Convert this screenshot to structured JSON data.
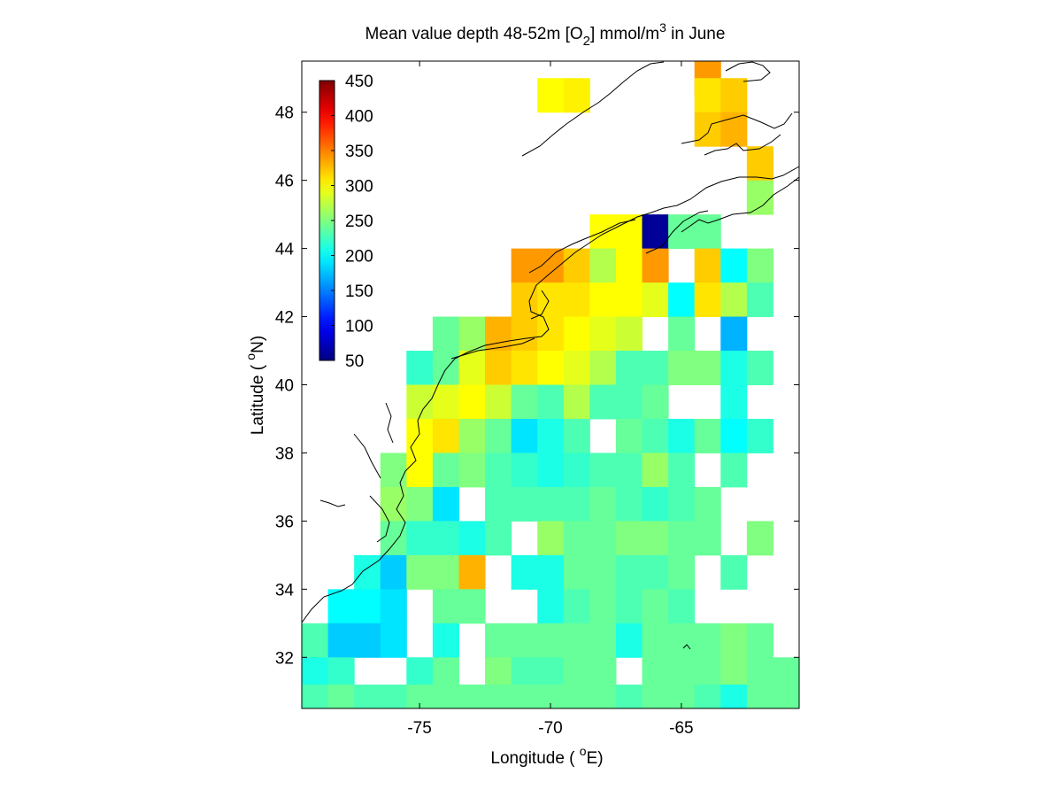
{
  "chart_data": {
    "type": "heatmap",
    "title": {
      "prefix": "Mean value depth 48-52m [O",
      "sub": "2",
      "mid": "] mmol/m",
      "sup": "3",
      "suffix": " in June"
    },
    "xlabel": {
      "text": "Longitude ( ",
      "sup": "o",
      "unit": "E)"
    },
    "ylabel": {
      "text": "Latitude ( ",
      "sup": "o",
      "unit": "N)"
    },
    "xlim": [
      -79.5,
      -60.5
    ],
    "ylim": [
      30.5,
      49.5
    ],
    "xticks": [
      -75,
      -70,
      -65
    ],
    "yticks": [
      32,
      34,
      36,
      38,
      40,
      42,
      44,
      46,
      48
    ],
    "colorbar": {
      "range": [
        50,
        450
      ],
      "ticks": [
        50,
        100,
        150,
        200,
        250,
        300,
        350,
        400,
        450
      ],
      "colormap": "jet",
      "position": "top-left"
    },
    "cell_size_deg": 1,
    "cells_note": "each row: [latitude_center, first_longitude_center, values...]; null = no data",
    "rows": [
      [
        49.0,
        -64.0,
        340
      ],
      [
        48.5,
        -70.0,
        300,
        305
      ],
      [
        48.5,
        -64.0,
        310,
        320
      ],
      [
        47.5,
        -64.0,
        320,
        330
      ],
      [
        46.5,
        -62.0,
        320
      ],
      [
        45.5,
        -62.0,
        260
      ],
      [
        44.5,
        -68.0,
        300,
        300,
        60,
        240,
        240
      ],
      [
        43.5,
        -71.0,
        340,
        340,
        320,
        270,
        300,
        340,
        null,
        320,
        200,
        250
      ],
      [
        42.5,
        -71.0,
        320,
        310,
        310,
        300,
        300,
        290,
        200,
        310,
        270,
        230
      ],
      [
        41.5,
        -74.0,
        240,
        260,
        330,
        320,
        310,
        300,
        290,
        280,
        null,
        240,
        null,
        170
      ],
      [
        40.5,
        -75.0,
        220,
        240,
        290,
        320,
        310,
        300,
        290,
        270,
        230,
        230,
        250,
        250,
        210,
        230
      ],
      [
        39.5,
        -75.0,
        280,
        290,
        300,
        280,
        240,
        230,
        270,
        230,
        230,
        240,
        null,
        null,
        210,
        null
      ],
      [
        38.5,
        -75.0,
        300,
        310,
        260,
        240,
        190,
        210,
        230,
        null,
        240,
        230,
        210,
        240,
        200,
        220
      ],
      [
        37.5,
        -76.0,
        250,
        300,
        240,
        250,
        230,
        220,
        210,
        220,
        230,
        230,
        260,
        230,
        null,
        230
      ],
      [
        36.5,
        -76.0,
        260,
        250,
        190,
        null,
        230,
        230,
        230,
        230,
        240,
        230,
        220,
        230,
        240,
        null
      ],
      [
        35.5,
        -76.0,
        240,
        220,
        220,
        210,
        230,
        null,
        260,
        240,
        240,
        250,
        250,
        240,
        240,
        null,
        250
      ],
      [
        34.5,
        -77.0,
        210,
        180,
        250,
        250,
        330,
        null,
        210,
        210,
        240,
        240,
        230,
        230,
        240,
        null,
        230
      ],
      [
        33.5,
        -79.0,
        null,
        200,
        200,
        190,
        null,
        240,
        240,
        null,
        null,
        210,
        230,
        240,
        230,
        240,
        230
      ],
      [
        32.5,
        -79.0,
        230,
        180,
        180,
        190,
        null,
        210,
        null,
        240,
        240,
        240,
        240,
        240,
        210,
        240,
        240,
        240,
        250,
        240
      ],
      [
        31.5,
        -79.0,
        210,
        220,
        null,
        null,
        220,
        240,
        null,
        250,
        230,
        230,
        240,
        240,
        null,
        240,
        240,
        240,
        250,
        240,
        240
      ],
      [
        30.7,
        -79.0,
        230,
        240,
        230,
        230,
        240,
        240,
        240,
        240,
        240,
        240,
        240,
        240,
        230,
        240,
        240,
        230,
        210,
        240,
        240
      ]
    ]
  }
}
